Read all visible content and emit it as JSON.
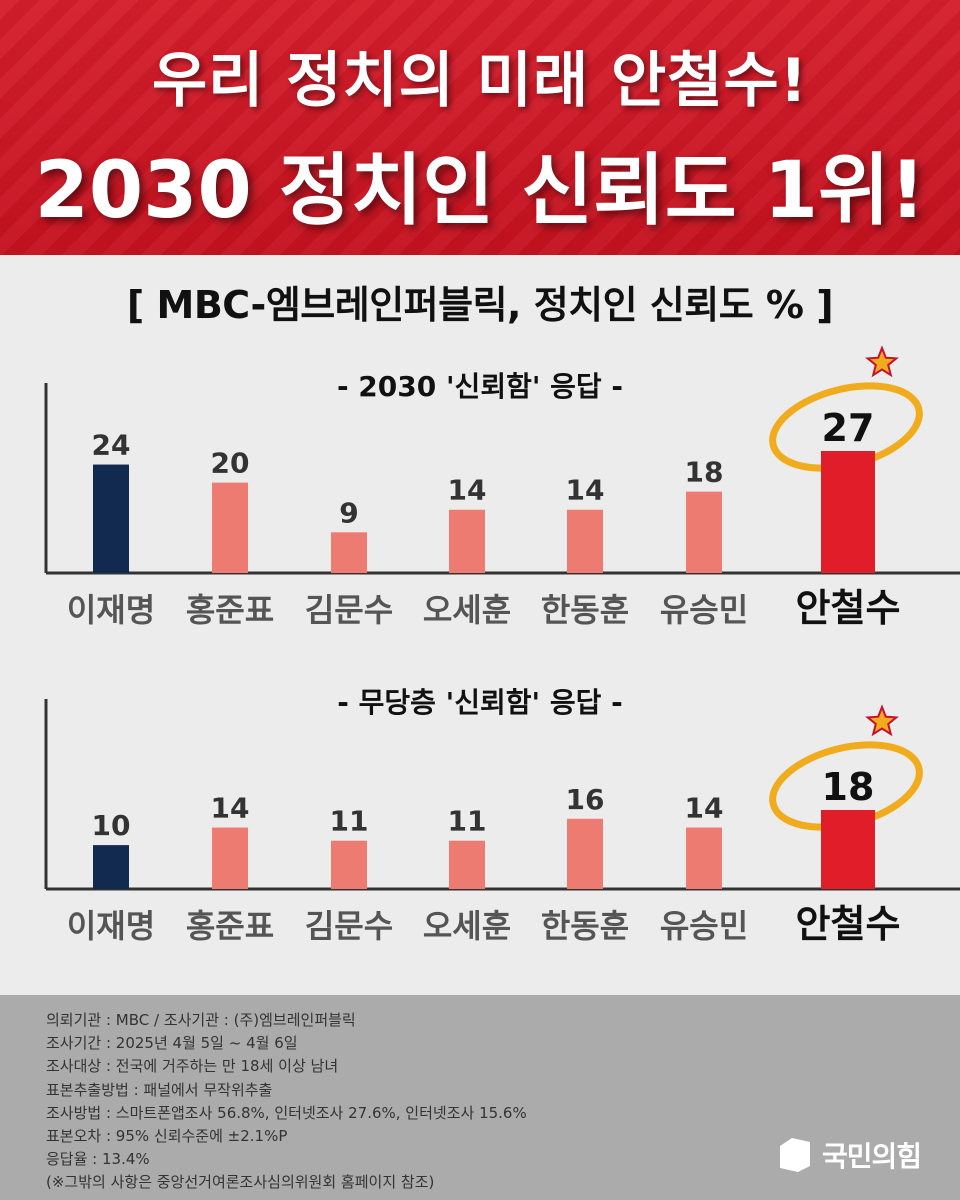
{
  "headline": {
    "line1": "우리 정치의 미래 안철수!",
    "line2": "2030 정치인 신뢰도 1위!"
  },
  "chart_heading": "[ MBC-엠브레인퍼블릭, 정치인 신뢰도 % ]",
  "colors": {
    "banner_red": "#c4121f",
    "navy": "#132a50",
    "salmon": "#ee7b72",
    "highlight_red": "#e11d2a",
    "ring_gold": "#f0ac1d"
  },
  "chart_data": [
    {
      "type": "bar",
      "title": "- 2030 '신뢰함' 응답 -",
      "categories": [
        "이재명",
        "홍준표",
        "김문수",
        "오세훈",
        "한동훈",
        "유승민",
        "안철수"
      ],
      "values": [
        24,
        20,
        9,
        14,
        14,
        18,
        27
      ],
      "unit": "%",
      "highlight": "안철수",
      "xlabel": "",
      "ylabel": "",
      "ylim": [
        0,
        27
      ],
      "grid": false
    },
    {
      "type": "bar",
      "title": "- 무당층 '신뢰함' 응답 -",
      "categories": [
        "이재명",
        "홍준표",
        "김문수",
        "오세훈",
        "한동훈",
        "유승민",
        "안철수"
      ],
      "values": [
        10,
        14,
        11,
        11,
        16,
        14,
        18
      ],
      "unit": "%",
      "highlight": "안철수",
      "xlabel": "",
      "ylabel": "",
      "ylim": [
        0,
        18
      ],
      "grid": false
    }
  ],
  "footer": {
    "lines": [
      "의뢰기관 : MBC / 조사기관 : (주)엠브레인퍼블릭",
      "조사기간 : 2025년 4월 5일 ~ 4월 6일",
      "조사대상 : 전국에 거주하는 만 18세 이상 남녀",
      "표본추출방법 : 패널에서 무작위추출",
      "조사방법 : 스마트폰앱조사 56.8%, 인터넷조사 27.6%, 인터넷조사 15.6%",
      "표본오차 : 95% 신뢰수준에 ±2.1%P",
      "응답율 : 13.4%",
      "(※그밖의 사항은 중앙선거여론조사심의위원회 홈페이지 참조)"
    ],
    "logo_text": "국민의힘",
    "logo_icon": "party-logo-icon"
  }
}
